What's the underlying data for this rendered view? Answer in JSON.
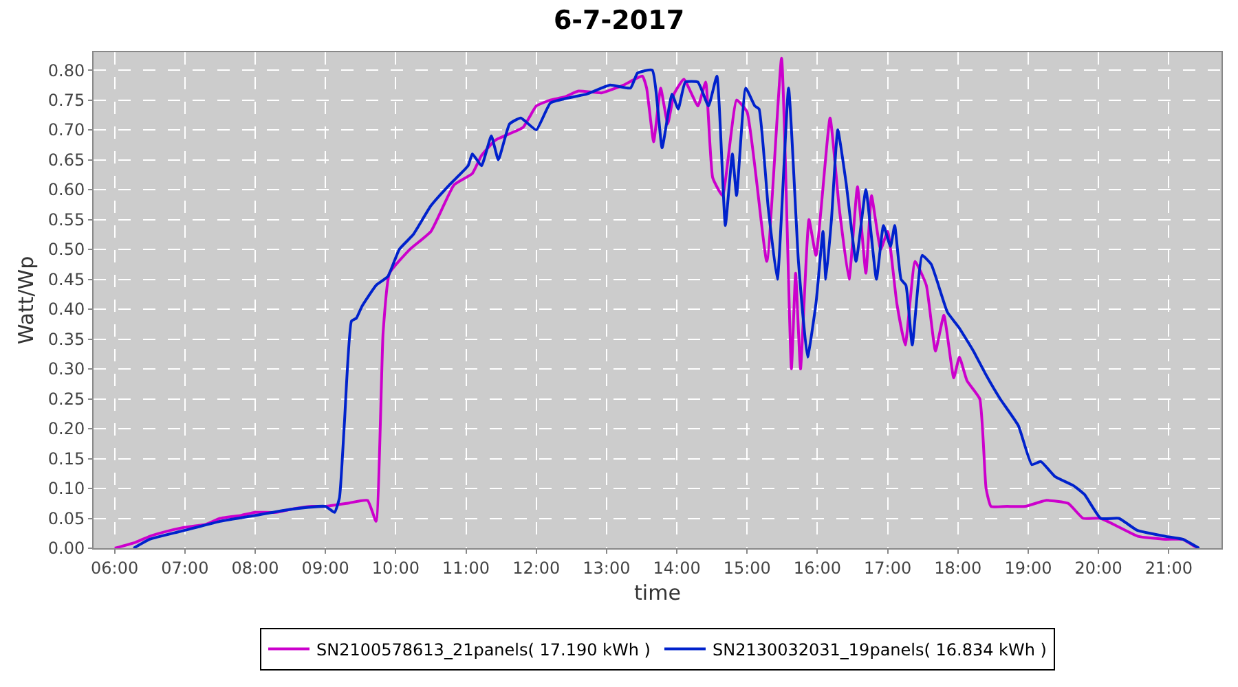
{
  "chart_data": {
    "type": "line",
    "title": "6-7-2017",
    "xlabel": "time",
    "ylabel": "Watt/Wp",
    "xlim": [
      5.7,
      21.75
    ],
    "xticks": [
      {
        "value": 6,
        "label": "06:00"
      },
      {
        "value": 7,
        "label": "07:00"
      },
      {
        "value": 8,
        "label": "08:00"
      },
      {
        "value": 9,
        "label": "09:00"
      },
      {
        "value": 10,
        "label": "10:00"
      },
      {
        "value": 11,
        "label": "11:00"
      },
      {
        "value": 12,
        "label": "12:00"
      },
      {
        "value": 13,
        "label": "13:00"
      },
      {
        "value": 14,
        "label": "14:00"
      },
      {
        "value": 15,
        "label": "15:00"
      },
      {
        "value": 16,
        "label": "16:00"
      },
      {
        "value": 17,
        "label": "17:00"
      },
      {
        "value": 18,
        "label": "18:00"
      },
      {
        "value": 19,
        "label": "19:00"
      },
      {
        "value": 20,
        "label": "20:00"
      },
      {
        "value": 21,
        "label": "21:00"
      }
    ],
    "ylim": [
      0,
      0.83
    ],
    "yticks": [
      {
        "value": 0,
        "label": "0.00"
      },
      {
        "value": 0.05,
        "label": "0.05"
      },
      {
        "value": 0.1,
        "label": "0.10"
      },
      {
        "value": 0.15,
        "label": "0.15"
      },
      {
        "value": 0.2,
        "label": "0.20"
      },
      {
        "value": 0.25,
        "label": "0.25"
      },
      {
        "value": 0.3,
        "label": "0.30"
      },
      {
        "value": 0.35,
        "label": "0.35"
      },
      {
        "value": 0.4,
        "label": "0.40"
      },
      {
        "value": 0.45,
        "label": "0.45"
      },
      {
        "value": 0.5,
        "label": "0.50"
      },
      {
        "value": 0.55,
        "label": "0.55"
      },
      {
        "value": 0.6,
        "label": "0.60"
      },
      {
        "value": 0.65,
        "label": "0.65"
      },
      {
        "value": 0.7,
        "label": "0.70"
      },
      {
        "value": 0.75,
        "label": "0.75"
      },
      {
        "value": 0.8,
        "label": "0.80"
      }
    ],
    "grid": true,
    "legend": "bottom",
    "line_style": "solid",
    "series": [
      {
        "name": "SN2100578613_21panels( 17.190 kWh )",
        "color": "#cc00cc",
        "x": [
          6.0,
          6.3,
          6.5,
          6.8,
          7.0,
          7.3,
          7.5,
          7.8,
          8.0,
          8.3,
          8.5,
          8.8,
          9.0,
          9.3,
          9.6,
          9.72,
          9.82,
          9.91,
          10.2,
          10.5,
          10.83,
          11.09,
          11.22,
          11.42,
          11.81,
          12.0,
          12.2,
          12.4,
          12.6,
          12.93,
          13.24,
          13.51,
          13.57,
          13.67,
          13.77,
          13.87,
          13.96,
          14.1,
          14.3,
          14.41,
          14.51,
          14.65,
          14.85,
          15.0,
          15.28,
          15.49,
          15.63,
          15.69,
          15.76,
          15.88,
          15.98,
          16.18,
          16.31,
          16.45,
          16.57,
          16.69,
          16.77,
          16.9,
          17.0,
          17.13,
          17.25,
          17.39,
          17.55,
          17.68,
          17.8,
          17.94,
          18.02,
          18.13,
          18.31,
          18.4,
          18.47,
          18.7,
          18.96,
          19.25,
          19.57,
          19.78,
          20.03,
          20.56,
          20.95,
          21.2,
          21.34,
          21.43
        ],
        "values": [
          0,
          0.01,
          0.02,
          0.03,
          0.035,
          0.04,
          0.05,
          0.055,
          0.06,
          0.06,
          0.065,
          0.07,
          0.07,
          0.075,
          0.08,
          0.045,
          0.36,
          0.46,
          0.5,
          0.53,
          0.608,
          0.627,
          0.657,
          0.683,
          0.704,
          0.74,
          0.75,
          0.755,
          0.765,
          0.762,
          0.775,
          0.79,
          0.77,
          0.68,
          0.77,
          0.71,
          0.76,
          0.785,
          0.74,
          0.78,
          0.62,
          0.59,
          0.75,
          0.73,
          0.48,
          0.82,
          0.3,
          0.46,
          0.3,
          0.55,
          0.49,
          0.72,
          0.57,
          0.45,
          0.605,
          0.46,
          0.59,
          0.5,
          0.53,
          0.41,
          0.34,
          0.48,
          0.44,
          0.33,
          0.39,
          0.285,
          0.32,
          0.28,
          0.25,
          0.1,
          0.07,
          0.07,
          0.07,
          0.08,
          0.075,
          0.05,
          0.05,
          0.02,
          0.015,
          0.015,
          0.005,
          0
        ]
      },
      {
        "name": "SN2130032031_19panels( 16.834 kWh )",
        "color": "#0022cc",
        "x": [
          6.27,
          6.5,
          7.0,
          7.5,
          8.0,
          8.5,
          9.0,
          9.13,
          9.2,
          9.27,
          9.37,
          9.44,
          9.52,
          9.72,
          9.89,
          10.05,
          10.25,
          10.5,
          10.78,
          11.03,
          11.09,
          11.22,
          11.36,
          11.46,
          11.62,
          11.78,
          12.0,
          12.2,
          12.52,
          12.72,
          13.05,
          13.34,
          13.44,
          13.65,
          13.79,
          13.93,
          14.02,
          14.12,
          14.3,
          14.45,
          14.57,
          14.69,
          14.79,
          14.85,
          14.98,
          15.11,
          15.17,
          15.3,
          15.43,
          15.59,
          15.73,
          15.86,
          15.98,
          16.08,
          16.12,
          16.2,
          16.29,
          16.41,
          16.55,
          16.69,
          16.84,
          16.94,
          17.04,
          17.1,
          17.19,
          17.26,
          17.35,
          17.49,
          17.62,
          17.85,
          18.01,
          18.22,
          18.4,
          18.6,
          18.86,
          19.05,
          19.18,
          19.38,
          19.64,
          19.8,
          20.03,
          20.29,
          20.55,
          20.95,
          21.2,
          21.43
        ],
        "values": [
          0,
          0.015,
          0.03,
          0.045,
          0.055,
          0.065,
          0.07,
          0.06,
          0.085,
          0.21,
          0.38,
          0.385,
          0.405,
          0.44,
          0.455,
          0.5,
          0.525,
          0.573,
          0.61,
          0.64,
          0.66,
          0.64,
          0.69,
          0.65,
          0.71,
          0.72,
          0.7,
          0.745,
          0.755,
          0.76,
          0.775,
          0.77,
          0.795,
          0.8,
          0.67,
          0.76,
          0.735,
          0.78,
          0.78,
          0.74,
          0.79,
          0.54,
          0.66,
          0.59,
          0.77,
          0.74,
          0.735,
          0.57,
          0.45,
          0.77,
          0.48,
          0.32,
          0.41,
          0.53,
          0.45,
          0.55,
          0.7,
          0.61,
          0.48,
          0.6,
          0.45,
          0.54,
          0.505,
          0.54,
          0.45,
          0.44,
          0.34,
          0.49,
          0.475,
          0.395,
          0.37,
          0.33,
          0.29,
          0.25,
          0.205,
          0.14,
          0.145,
          0.12,
          0.105,
          0.09,
          0.05,
          0.05,
          0.03,
          0.02,
          0.015,
          0
        ]
      }
    ]
  }
}
